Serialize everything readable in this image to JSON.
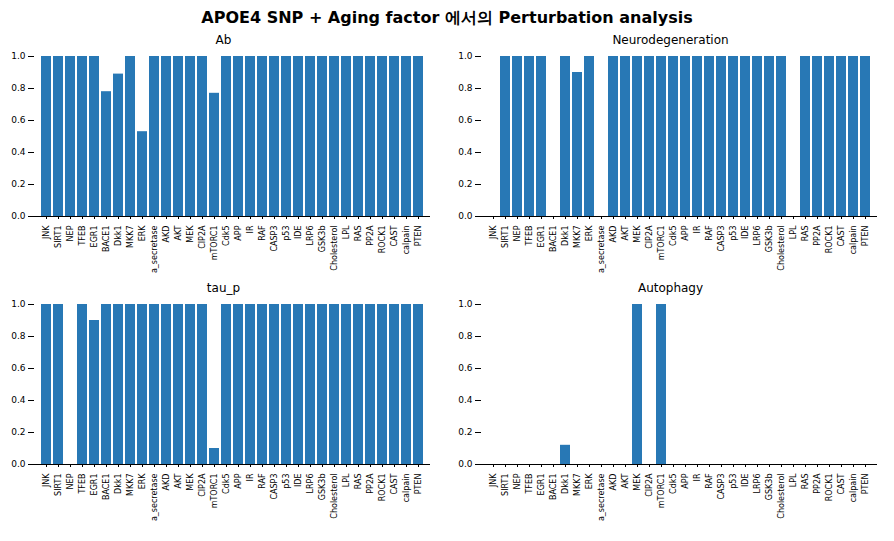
{
  "title": "APOE4 SNP + Aging factor 에서의 Perturbation analysis",
  "chart_data": [
    {
      "type": "bar",
      "title": "Ab",
      "categories": [
        "JNK",
        "SIRT1",
        "NEP",
        "TFEB",
        "EGR1",
        "BACE1",
        "Dkk1",
        "MKK7",
        "ERK",
        "a_secretase",
        "AKD",
        "AKT",
        "MEK",
        "CIP2A",
        "mTORC1",
        "Cdk5",
        "APP",
        "IR",
        "RAF",
        "CASP3",
        "p53",
        "IDE",
        "LRP6",
        "GSK3b",
        "Cholesterol",
        "LPL",
        "RAS",
        "PP2A",
        "ROCK1",
        "CAST",
        "calpain",
        "PTEN"
      ],
      "values": [
        1.0,
        1.0,
        1.0,
        1.0,
        1.0,
        0.78,
        0.89,
        1.0,
        0.53,
        1.0,
        1.0,
        1.0,
        1.0,
        1.0,
        0.77,
        1.0,
        1.0,
        1.0,
        1.0,
        1.0,
        1.0,
        1.0,
        1.0,
        1.0,
        1.0,
        1.0,
        1.0,
        1.0,
        1.0,
        1.0,
        1.0,
        1.0
      ],
      "color": "#2878b5",
      "ylim": [
        0.0,
        1.0
      ],
      "yticks": [
        {
          "value": 0.0,
          "label": "0.0"
        },
        0.2,
        0.4,
        0.6,
        0.8,
        {
          "value": 1.0,
          "label": "1.0"
        }
      ]
    },
    {
      "type": "bar",
      "title": "Neurodegeneration",
      "categories": [
        "JNK",
        "SIRT1",
        "NEP",
        "TFEB",
        "EGR1",
        "BACE1",
        "Dkk1",
        "MKK7",
        "ERK",
        "a_secretase",
        "AKD",
        "AKT",
        "MEK",
        "CIP2A",
        "mTORC1",
        "Cdk5",
        "APP",
        "IR",
        "RAF",
        "CASP3",
        "p53",
        "IDE",
        "LRP6",
        "GSK3b",
        "Cholesterol",
        "LPL",
        "RAS",
        "PP2A",
        "ROCK1",
        "CAST",
        "calpain",
        "PTEN"
      ],
      "values": [
        0.0,
        1.0,
        1.0,
        1.0,
        1.0,
        0.0,
        1.0,
        0.9,
        1.0,
        0.0,
        1.0,
        1.0,
        1.0,
        1.0,
        1.0,
        1.0,
        1.0,
        1.0,
        1.0,
        1.0,
        1.0,
        1.0,
        1.0,
        1.0,
        1.0,
        0.0,
        1.0,
        1.0,
        1.0,
        1.0,
        1.0,
        1.0
      ],
      "color": "#2878b5",
      "ylim": [
        0.0,
        1.0
      ],
      "yticks": [
        {
          "value": 0.0,
          "label": "0.0"
        },
        0.2,
        0.4,
        0.6,
        0.8,
        {
          "value": 1.0,
          "label": "1.0"
        }
      ]
    },
    {
      "type": "bar",
      "title": "tau_p",
      "categories": [
        "JNK",
        "SIRT1",
        "NEP",
        "TFEB",
        "EGR1",
        "BACE1",
        "Dkk1",
        "MKK7",
        "ERK",
        "a_secretase",
        "AKD",
        "AKT",
        "MEK",
        "CIP2A",
        "mTORC1",
        "Cdk5",
        "APP",
        "IR",
        "RAF",
        "CASP3",
        "p53",
        "IDE",
        "LRP6",
        "GSK3b",
        "Cholesterol",
        "LPL",
        "RAS",
        "PP2A",
        "ROCK1",
        "CAST",
        "calpain",
        "PTEN"
      ],
      "values": [
        1.0,
        1.0,
        0.0,
        1.0,
        0.9,
        1.0,
        1.0,
        1.0,
        1.0,
        1.0,
        1.0,
        1.0,
        1.0,
        1.0,
        0.1,
        1.0,
        1.0,
        1.0,
        1.0,
        1.0,
        1.0,
        1.0,
        1.0,
        1.0,
        1.0,
        1.0,
        1.0,
        1.0,
        1.0,
        1.0,
        1.0,
        1.0
      ],
      "color": "#2878b5",
      "ylim": [
        0.0,
        1.0
      ],
      "yticks": [
        {
          "value": 0.0,
          "label": "0.0"
        },
        0.2,
        0.4,
        0.6,
        0.8,
        {
          "value": 1.0,
          "label": "1.0"
        }
      ]
    },
    {
      "type": "bar",
      "title": "Autophagy",
      "categories": [
        "JNK",
        "SIRT1",
        "NEP",
        "TFEB",
        "EGR1",
        "BACE1",
        "Dkk1",
        "MKK7",
        "ERK",
        "a_secretase",
        "AKD",
        "AKT",
        "MEK",
        "CIP2A",
        "mTORC1",
        "Cdk5",
        "APP",
        "IR",
        "RAF",
        "CASP3",
        "p53",
        "IDE",
        "LRP6",
        "GSK3b",
        "Cholesterol",
        "LPL",
        "RAS",
        "PP2A",
        "ROCK1",
        "CAST",
        "calpain",
        "PTEN"
      ],
      "values": [
        0.0,
        0.0,
        0.0,
        0.0,
        0.0,
        0.0,
        0.12,
        0.0,
        0.0,
        0.0,
        0.0,
        0.0,
        1.0,
        0.0,
        1.0,
        0.0,
        0.0,
        0.0,
        0.0,
        0.0,
        0.0,
        0.0,
        0.0,
        0.0,
        0.0,
        0.0,
        0.0,
        0.0,
        0.0,
        0.0,
        0.0,
        0.0
      ],
      "color": "#2878b5",
      "ylim": [
        0.0,
        1.0
      ],
      "yticks": [
        {
          "value": 0.0,
          "label": "0.0"
        },
        0.2,
        0.4,
        0.6,
        0.8,
        {
          "value": 1.0,
          "label": "1.0"
        }
      ]
    }
  ]
}
